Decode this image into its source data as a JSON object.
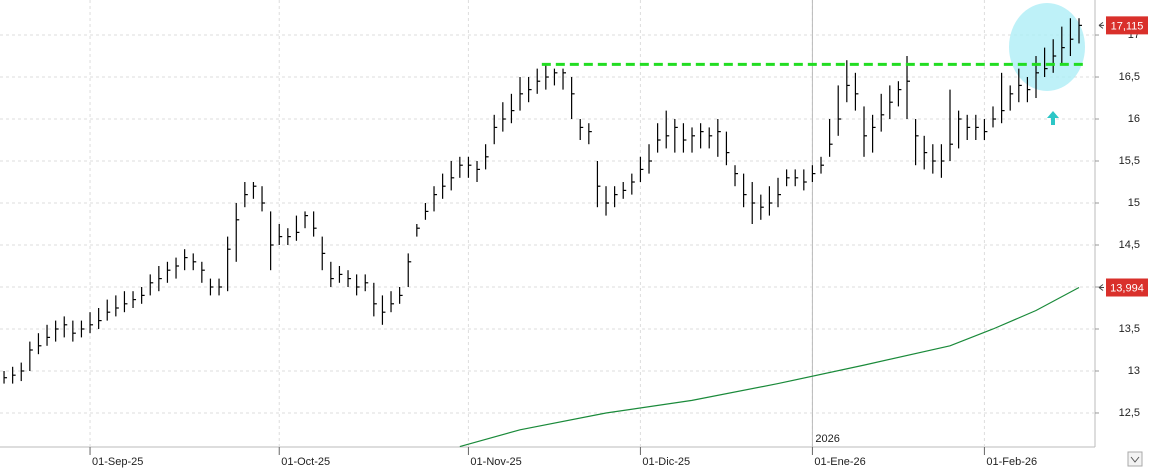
{
  "chart_data": {
    "type": "ohlc",
    "categories": [
      null,
      null,
      null,
      null,
      null,
      null,
      null,
      null,
      null,
      null,
      "01-Sep-25",
      null,
      null,
      null,
      null,
      null,
      null,
      null,
      null,
      null,
      null,
      null,
      null,
      null,
      null,
      null,
      null,
      null,
      null,
      null,
      null,
      null,
      "01-Oct-25",
      null,
      null,
      null,
      null,
      null,
      null,
      null,
      null,
      null,
      null,
      null,
      null,
      null,
      null,
      null,
      null,
      null,
      null,
      null,
      null,
      null,
      "01-Nov-25",
      null,
      null,
      null,
      null,
      null,
      null,
      null,
      null,
      null,
      null,
      null,
      null,
      null,
      null,
      null,
      null,
      null,
      null,
      null,
      "01-Dic-25",
      null,
      null,
      null,
      null,
      null,
      null,
      null,
      null,
      null,
      null,
      null,
      null,
      null,
      null,
      null,
      null,
      null,
      null,
      null,
      "01-Ene-26",
      null,
      null,
      null,
      null,
      null,
      null,
      null,
      null,
      null,
      null,
      null,
      null,
      null,
      null,
      null,
      null,
      null,
      null,
      null,
      "01-Feb-26",
      null,
      null,
      null,
      null,
      null,
      null,
      null,
      null,
      null,
      null,
      null
    ],
    "year_label": "2026",
    "series": [
      {
        "color": "#000000",
        "high": [
          13.0,
          13.05,
          13.1,
          13.35,
          13.45,
          13.55,
          13.6,
          13.65,
          13.6,
          13.6,
          13.7,
          13.75,
          13.85,
          13.9,
          13.95,
          13.95,
          14.0,
          14.15,
          14.25,
          14.3,
          14.35,
          14.45,
          14.4,
          14.3,
          14.1,
          14.1,
          14.6,
          15.0,
          15.25,
          15.25,
          15.2,
          14.9,
          14.75,
          14.7,
          14.85,
          14.9,
          14.9,
          14.6,
          14.3,
          14.25,
          14.2,
          14.15,
          14.15,
          14.05,
          13.9,
          13.95,
          14.0,
          14.4,
          14.75,
          15.0,
          15.2,
          15.35,
          15.5,
          15.55,
          15.55,
          15.5,
          15.7,
          16.05,
          16.2,
          16.3,
          16.5,
          16.5,
          16.6,
          16.65,
          16.6,
          16.6,
          16.5,
          16.0,
          15.95,
          15.5,
          15.2,
          15.2,
          15.25,
          15.35,
          15.55,
          15.7,
          15.95,
          16.1,
          16.0,
          15.95,
          15.9,
          15.95,
          15.9,
          16.0,
          15.85,
          15.45,
          15.35,
          15.25,
          15.1,
          15.2,
          15.3,
          15.4,
          15.4,
          15.4,
          15.45,
          15.55,
          16.0,
          16.4,
          16.7,
          16.55,
          16.15,
          16.05,
          16.3,
          16.4,
          16.45,
          16.75,
          16.0,
          15.8,
          15.7,
          15.7,
          16.35,
          16.1,
          16.05,
          16.05,
          16.0,
          16.15,
          16.55,
          16.4,
          16.6,
          16.5,
          16.75,
          16.85,
          16.95,
          17.1,
          17.2,
          17.2
        ],
        "low": [
          12.85,
          12.85,
          12.88,
          13.0,
          13.2,
          13.3,
          13.35,
          13.4,
          13.35,
          13.4,
          13.45,
          13.5,
          13.6,
          13.65,
          13.7,
          13.75,
          13.8,
          13.9,
          13.95,
          14.05,
          14.1,
          14.2,
          14.2,
          14.05,
          13.9,
          13.9,
          13.95,
          14.3,
          14.95,
          15.05,
          14.9,
          14.2,
          14.5,
          14.5,
          14.55,
          14.7,
          14.6,
          14.2,
          14.0,
          14.05,
          14.0,
          13.9,
          13.95,
          13.65,
          13.55,
          13.7,
          13.8,
          14.0,
          14.6,
          14.8,
          14.9,
          15.05,
          15.15,
          15.3,
          15.3,
          15.25,
          15.4,
          15.7,
          15.85,
          15.95,
          16.1,
          16.2,
          16.3,
          16.35,
          16.4,
          16.35,
          16.0,
          15.75,
          15.7,
          14.95,
          14.85,
          14.95,
          15.05,
          15.1,
          15.25,
          15.35,
          15.6,
          15.65,
          15.6,
          15.6,
          15.6,
          15.65,
          15.65,
          15.55,
          15.45,
          15.2,
          14.95,
          14.75,
          14.8,
          14.85,
          14.95,
          15.2,
          15.2,
          15.15,
          15.25,
          15.35,
          15.55,
          15.8,
          16.2,
          16.1,
          15.55,
          15.6,
          15.85,
          16.0,
          16.15,
          16.0,
          15.45,
          15.4,
          15.35,
          15.3,
          15.5,
          15.65,
          15.75,
          15.75,
          15.75,
          15.9,
          15.95,
          16.1,
          16.2,
          16.2,
          16.25,
          16.5,
          16.55,
          16.65,
          16.75,
          16.9
        ],
        "close": [
          12.92,
          12.95,
          13.0,
          13.25,
          13.3,
          13.4,
          13.5,
          13.55,
          13.45,
          13.5,
          13.55,
          13.6,
          13.7,
          13.75,
          13.8,
          13.85,
          13.9,
          14.05,
          14.1,
          14.2,
          14.25,
          14.35,
          14.3,
          14.2,
          14.0,
          14.0,
          14.45,
          14.8,
          15.1,
          15.2,
          15.0,
          14.5,
          14.6,
          14.6,
          14.65,
          14.85,
          14.7,
          14.4,
          14.1,
          14.15,
          14.1,
          14.0,
          14.05,
          13.8,
          13.7,
          13.8,
          13.9,
          14.3,
          14.7,
          14.9,
          15.1,
          15.2,
          15.3,
          15.45,
          15.45,
          15.4,
          15.55,
          15.9,
          16.0,
          16.1,
          16.3,
          16.35,
          16.45,
          16.5,
          16.55,
          16.55,
          16.3,
          15.9,
          15.85,
          15.2,
          15.0,
          15.1,
          15.15,
          15.25,
          15.4,
          15.5,
          15.75,
          15.8,
          15.9,
          15.75,
          15.8,
          15.85,
          15.8,
          15.85,
          15.6,
          15.35,
          15.1,
          15.0,
          14.95,
          15.0,
          15.1,
          15.3,
          15.3,
          15.25,
          15.35,
          15.45,
          15.7,
          16.0,
          16.4,
          16.3,
          15.8,
          15.9,
          16.05,
          16.2,
          16.35,
          16.45,
          15.8,
          15.6,
          15.5,
          15.5,
          15.7,
          16.0,
          15.9,
          15.9,
          15.85,
          16.0,
          16.1,
          16.3,
          16.4,
          16.35,
          16.55,
          16.6,
          16.75,
          16.85,
          16.95,
          17.115
        ]
      }
    ],
    "moving_average": {
      "color": "#1a8a3a",
      "x": [
        53,
        60,
        70,
        80,
        90,
        100,
        110,
        115,
        120,
        125
      ],
      "values": [
        12.1,
        12.3,
        12.5,
        12.65,
        12.85,
        13.07,
        13.3,
        13.5,
        13.72,
        13.994
      ]
    },
    "resistance": {
      "color": "#22dd22",
      "value": 16.65,
      "x": [
        63,
        125
      ]
    },
    "price_labels": [
      {
        "value": 17.115,
        "label": "17,115"
      },
      {
        "value": 13.994,
        "label": "13,994"
      }
    ],
    "xlim": [
      -0.47,
      126.86
    ],
    "ylim": [
      12.095,
      17.417
    ],
    "yticks": [
      {
        "value": 12.5,
        "label": "12,5"
      },
      13,
      {
        "value": 13.5,
        "label": "13,5"
      },
      14,
      {
        "value": 14.5,
        "label": "14,5"
      },
      15,
      {
        "value": 15.5,
        "label": "15,5"
      },
      16,
      {
        "value": 16.5,
        "label": "16,5"
      },
      17
    ],
    "grid": true
  }
}
